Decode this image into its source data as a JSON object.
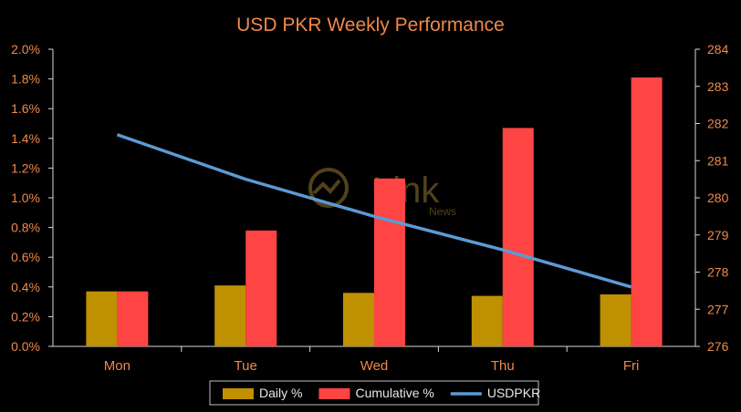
{
  "chart_data": {
    "type": "bar",
    "title": "USD PKR Weekly Performance",
    "categories": [
      "Mon",
      "Tue",
      "Wed",
      "Thu",
      "Fri"
    ],
    "series": [
      {
        "name": "Daily %",
        "kind": "bar",
        "axis": "left",
        "color": "#bf9000",
        "values": [
          0.37,
          0.41,
          0.36,
          0.34,
          0.35
        ]
      },
      {
        "name": "Cumulative %",
        "kind": "bar",
        "axis": "left",
        "color": "#ff4444",
        "values": [
          0.37,
          0.78,
          1.13,
          1.47,
          1.81
        ]
      },
      {
        "name": "USDPKR",
        "kind": "line",
        "axis": "right",
        "color": "#5b9bd5",
        "values": [
          281.7,
          280.5,
          279.5,
          278.6,
          277.6
        ]
      }
    ],
    "ylim_left": [
      0,
      2.0
    ],
    "yticks_left": [
      "0.0%",
      "0.2%",
      "0.4%",
      "0.6%",
      "0.8%",
      "1.0%",
      "1.2%",
      "1.4%",
      "1.6%",
      "1.8%",
      "2.0%"
    ],
    "ylim_right": [
      276,
      284
    ],
    "yticks_right": [
      "276",
      "277",
      "278",
      "279",
      "280",
      "281",
      "282",
      "283",
      "284"
    ],
    "grid": false,
    "legend_position": "bottom",
    "watermark": {
      "text": "Link",
      "sub": "News"
    }
  }
}
